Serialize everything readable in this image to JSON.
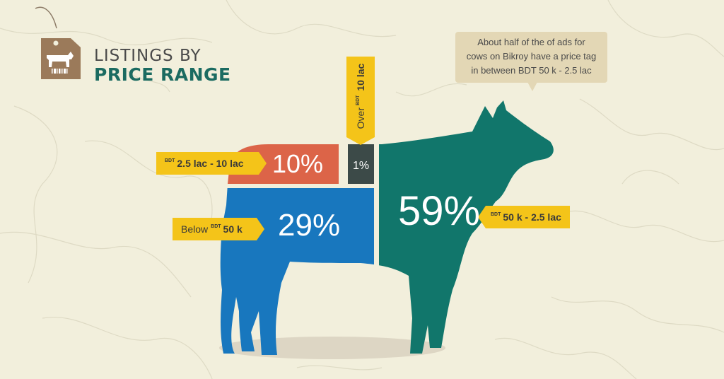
{
  "title": {
    "line1": "LISTINGS BY",
    "line2": "PRICE RANGE"
  },
  "callout": {
    "line1": "About half of the of ads for",
    "line2": "cows on Bikroy have a price tag",
    "line3": "in between BDT 50 k - 2.5 lac"
  },
  "labels": {
    "over": {
      "prefix": "Over",
      "currency": "BDT",
      "amount": "10 lac"
    },
    "range_high": {
      "currency": "BDT",
      "amount": "2.5 lac - 10 lac"
    },
    "below": {
      "prefix": "Below",
      "currency": "BDT",
      "amount": "50 k"
    },
    "range_mid": {
      "currency": "BDT",
      "amount": "50 k - 2.5 lac"
    }
  },
  "percents": {
    "p59": "59%",
    "p29": "29%",
    "p10": "10%",
    "p1": "1%"
  },
  "icons": {
    "tag": "price-tag-cow-icon"
  },
  "colors": {
    "background": "#f2efdc",
    "teal": "#11766b",
    "blue": "#1877be",
    "orange": "#dc6448",
    "dark": "#3c4a48",
    "yellow": "#f4c419",
    "tag_brown": "#9b7a5a",
    "callout": "#e3d7b5"
  },
  "chart_data": {
    "type": "bar",
    "title": "LISTINGS BY PRICE RANGE",
    "categories": [
      "Below BDT 50 k",
      "BDT 50 k - 2.5 lac",
      "BDT 2.5 lac - 10 lac",
      "Over BDT 10 lac"
    ],
    "values": [
      29,
      59,
      10,
      1
    ],
    "unit": "%"
  }
}
